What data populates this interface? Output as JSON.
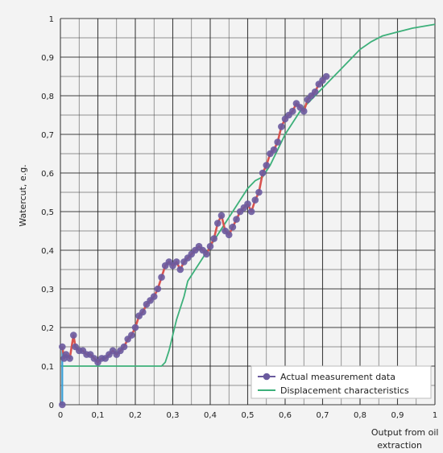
{
  "chart_data": {
    "type": "line",
    "title": "",
    "ylabel": "Watercut, e.g.",
    "xlabel_lines": [
      "Output from oil",
      "extraction"
    ],
    "xlim": [
      0,
      1
    ],
    "ylim": [
      0,
      1
    ],
    "x_ticks": [
      0,
      0.1,
      0.2,
      0.3,
      0.4,
      0.5,
      0.6,
      0.7,
      0.8,
      0.9,
      1
    ],
    "x_tick_labels": [
      "0",
      "0,1",
      "0,2",
      "0,3",
      "0,4",
      "0,5",
      "0,6",
      "0,7",
      "0,8",
      "0,9",
      "1"
    ],
    "y_ticks": [
      0,
      0.1,
      0.2,
      0.3,
      0.4,
      0.5,
      0.6,
      0.7,
      0.8,
      0.9,
      1
    ],
    "y_tick_labels": [
      "0",
      "0,1",
      "0,2",
      "0,3",
      "0,4",
      "0,5",
      "0,6",
      "0,7",
      "0,8",
      "0,9",
      "1"
    ],
    "grid": true,
    "legend_position": "bottom-right",
    "colors": {
      "background": "#f3f3f3",
      "plot_background": "#f3f3f3",
      "grid": "#2b2b2b",
      "measured_line": "#d9534f",
      "measured_marker": "#6a5a9e",
      "initial_segment": "#3aa0d8",
      "displacement": "#3db07a"
    },
    "series": [
      {
        "name": "Actual measurement data",
        "style": "line-markers",
        "x": [
          0.005,
          0.005,
          0.01,
          0.015,
          0.025,
          0.035,
          0.04,
          0.05,
          0.06,
          0.07,
          0.08,
          0.09,
          0.1,
          0.11,
          0.12,
          0.13,
          0.14,
          0.15,
          0.16,
          0.17,
          0.18,
          0.19,
          0.2,
          0.21,
          0.22,
          0.23,
          0.24,
          0.25,
          0.26,
          0.27,
          0.28,
          0.29,
          0.3,
          0.31,
          0.32,
          0.33,
          0.34,
          0.35,
          0.36,
          0.37,
          0.38,
          0.39,
          0.4,
          0.41,
          0.42,
          0.43,
          0.44,
          0.45,
          0.46,
          0.47,
          0.48,
          0.49,
          0.5,
          0.51,
          0.52,
          0.53,
          0.54,
          0.55,
          0.56,
          0.57,
          0.58,
          0.59,
          0.6,
          0.61,
          0.62,
          0.63,
          0.64,
          0.65,
          0.66,
          0.67,
          0.68,
          0.69,
          0.7,
          0.71
        ],
        "y": [
          0.0,
          0.15,
          0.12,
          0.13,
          0.12,
          0.18,
          0.15,
          0.14,
          0.14,
          0.13,
          0.13,
          0.12,
          0.11,
          0.12,
          0.12,
          0.13,
          0.14,
          0.13,
          0.14,
          0.15,
          0.17,
          0.18,
          0.2,
          0.23,
          0.24,
          0.26,
          0.27,
          0.28,
          0.3,
          0.33,
          0.36,
          0.37,
          0.36,
          0.37,
          0.35,
          0.37,
          0.38,
          0.39,
          0.4,
          0.41,
          0.4,
          0.39,
          0.41,
          0.43,
          0.47,
          0.49,
          0.45,
          0.44,
          0.46,
          0.48,
          0.5,
          0.51,
          0.52,
          0.5,
          0.53,
          0.55,
          0.6,
          0.62,
          0.65,
          0.66,
          0.68,
          0.72,
          0.74,
          0.75,
          0.76,
          0.78,
          0.77,
          0.76,
          0.79,
          0.8,
          0.81,
          0.83,
          0.84,
          0.85
        ]
      },
      {
        "name": "Displacement characteristics",
        "style": "line",
        "x": [
          0.0,
          0.27,
          0.28,
          0.29,
          0.3,
          0.31,
          0.32,
          0.33,
          0.34,
          0.36,
          0.38,
          0.4,
          0.42,
          0.44,
          0.46,
          0.48,
          0.5,
          0.52,
          0.54,
          0.56,
          0.58,
          0.6,
          0.62,
          0.64,
          0.66,
          0.68,
          0.7,
          0.72,
          0.74,
          0.76,
          0.78,
          0.8,
          0.83,
          0.86,
          0.9,
          0.94,
          0.97,
          1.0
        ],
        "y": [
          0.1,
          0.1,
          0.11,
          0.14,
          0.18,
          0.22,
          0.25,
          0.28,
          0.32,
          0.35,
          0.38,
          0.41,
          0.44,
          0.47,
          0.5,
          0.53,
          0.56,
          0.58,
          0.59,
          0.62,
          0.66,
          0.7,
          0.73,
          0.76,
          0.78,
          0.8,
          0.82,
          0.84,
          0.86,
          0.88,
          0.9,
          0.92,
          0.94,
          0.955,
          0.965,
          0.975,
          0.98,
          0.985
        ]
      }
    ]
  }
}
